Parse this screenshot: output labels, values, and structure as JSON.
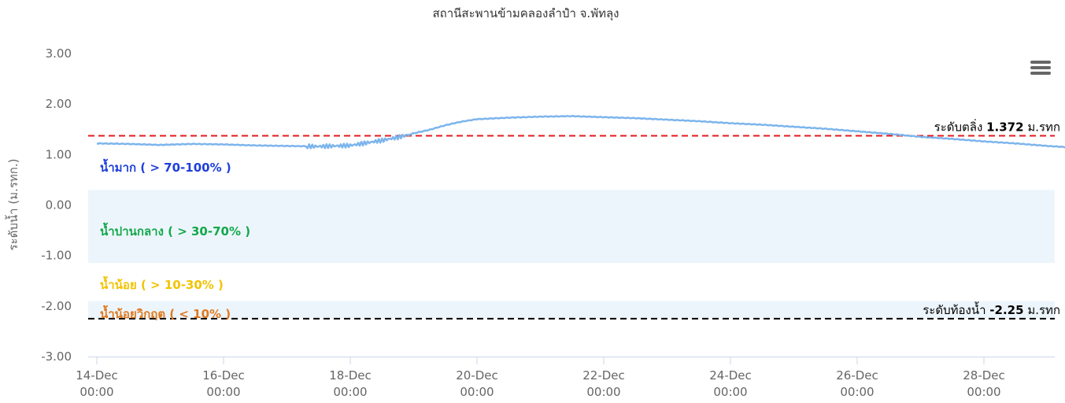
{
  "chart_data": {
    "type": "line",
    "title": "สถานีสะพานข้ามคลองลำปำ จ.พัทลุง",
    "ylabel": "ระดับน้ำ (ม.รทก.)",
    "xlabel": "",
    "ylim": [
      -3,
      3
    ],
    "yticks": [
      "3.00",
      "2.00",
      "1.00",
      "0.00",
      "-1.00",
      "-2.00",
      "-3.00"
    ],
    "xlim": [
      "2023-12-14 00:00",
      "2023-12-29 12:00"
    ],
    "xticks": [
      {
        "date": "2023-12-14 00:00",
        "line1": "14-Dec",
        "line2": "00:00"
      },
      {
        "date": "2023-12-16 00:00",
        "line1": "16-Dec",
        "line2": "00:00"
      },
      {
        "date": "2023-12-18 00:00",
        "line1": "18-Dec",
        "line2": "00:00"
      },
      {
        "date": "2023-12-20 00:00",
        "line1": "20-Dec",
        "line2": "00:00"
      },
      {
        "date": "2023-12-22 00:00",
        "line1": "22-Dec",
        "line2": "00:00"
      },
      {
        "date": "2023-12-24 00:00",
        "line1": "24-Dec",
        "line2": "00:00"
      },
      {
        "date": "2023-12-26 00:00",
        "line1": "26-Dec",
        "line2": "00:00"
      },
      {
        "date": "2023-12-28 00:00",
        "line1": "28-Dec",
        "line2": "00:00"
      }
    ],
    "series": [
      {
        "color": "#7cb5ec",
        "points": [
          [
            "2023-12-14 00:00",
            1.22
          ],
          [
            "2023-12-14 12:00",
            1.21
          ],
          [
            "2023-12-15 00:00",
            1.19
          ],
          [
            "2023-12-15 12:00",
            1.21
          ],
          [
            "2023-12-16 00:00",
            1.2
          ],
          [
            "2023-12-16 12:00",
            1.18
          ],
          [
            "2023-12-17 00:00",
            1.17
          ],
          [
            "2023-12-17 12:00",
            1.16
          ],
          [
            "2023-12-18 00:00",
            1.18
          ],
          [
            "2023-12-18 06:00",
            1.23
          ],
          [
            "2023-12-18 12:00",
            1.28
          ],
          [
            "2023-12-18 18:00",
            1.34
          ],
          [
            "2023-12-19 00:00",
            1.42
          ],
          [
            "2023-12-19 06:00",
            1.49
          ],
          [
            "2023-12-19 12:00",
            1.58
          ],
          [
            "2023-12-19 18:00",
            1.65
          ],
          [
            "2023-12-20 00:00",
            1.7
          ],
          [
            "2023-12-20 12:00",
            1.73
          ],
          [
            "2023-12-21 00:00",
            1.75
          ],
          [
            "2023-12-21 12:00",
            1.76
          ],
          [
            "2023-12-22 00:00",
            1.74
          ],
          [
            "2023-12-22 12:00",
            1.72
          ],
          [
            "2023-12-23 00:00",
            1.69
          ],
          [
            "2023-12-23 12:00",
            1.66
          ],
          [
            "2023-12-24 00:00",
            1.62
          ],
          [
            "2023-12-24 12:00",
            1.59
          ],
          [
            "2023-12-25 00:00",
            1.55
          ],
          [
            "2023-12-25 12:00",
            1.51
          ],
          [
            "2023-12-26 00:00",
            1.46
          ],
          [
            "2023-12-26 12:00",
            1.41
          ],
          [
            "2023-12-27 00:00",
            1.35
          ],
          [
            "2023-12-27 12:00",
            1.31
          ],
          [
            "2023-12-28 00:00",
            1.26
          ],
          [
            "2023-12-28 12:00",
            1.22
          ],
          [
            "2023-12-29 00:00",
            1.17
          ],
          [
            "2023-12-29 09:00",
            1.14
          ]
        ]
      }
    ],
    "bands": [
      {
        "from": 0.3,
        "to": 1.8,
        "fill": "#ffffff",
        "label": "น้ำมาก ( > 70-100% )",
        "label_color": "#1f3fdb"
      },
      {
        "from": -1.15,
        "to": 0.3,
        "fill": "#edf5fc",
        "label": "น้ำปานกลาง ( > 30-70% )",
        "label_color": "#12a84a"
      },
      {
        "from": -1.9,
        "to": -1.15,
        "fill": "#ffffff",
        "label": "น้ำน้อย ( > 10-30% )",
        "label_color": "#f2c300"
      },
      {
        "from": -2.25,
        "to": -1.9,
        "fill": "#edf5fc",
        "label": "น้ำน้อยวิกฤต ( < 10% )",
        "label_color": "#e07a1f"
      }
    ],
    "plot_lines": [
      {
        "value": 1.372,
        "color": "#e31a1c",
        "label_prefix": "ระดับตลิ่ง",
        "label_value": "1.372",
        "label_unit": "ม.รทก"
      },
      {
        "value": -2.25,
        "color": "#000000",
        "label_prefix": "ระดับท้องน้ำ",
        "label_value": "-2.25",
        "label_unit": "ม.รทก"
      }
    ],
    "grid": false,
    "legend": "none"
  },
  "menu": {
    "icon": "hamburger-menu-icon"
  }
}
